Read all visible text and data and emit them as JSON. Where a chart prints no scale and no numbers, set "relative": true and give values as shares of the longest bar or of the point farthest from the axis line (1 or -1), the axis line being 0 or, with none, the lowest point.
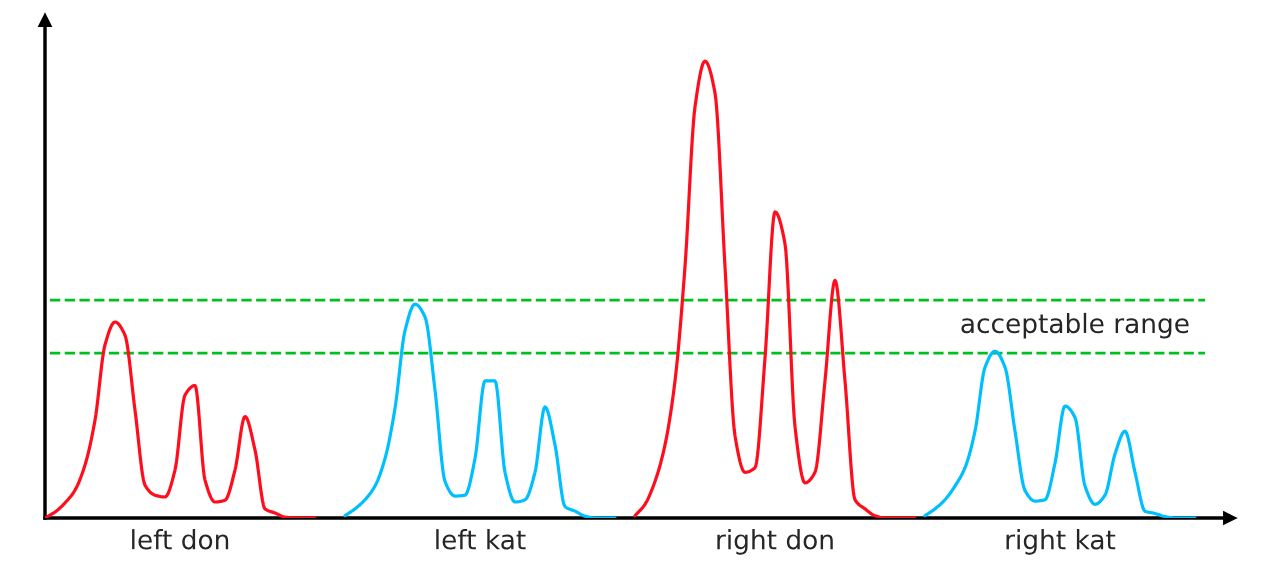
{
  "chart_data": {
    "type": "line",
    "relative": true,
    "legend": false,
    "line_style": "solid",
    "categories": [
      null,
      null,
      null,
      null,
      null,
      null,
      null,
      null,
      null,
      null,
      null,
      null,
      null,
      null,
      null,
      null,
      null,
      null,
      null,
      null,
      null,
      null,
      null,
      null,
      null,
      null,
      null,
      null,
      null,
      null,
      null,
      null,
      null,
      null,
      null,
      null,
      null,
      null,
      null,
      null,
      null,
      null,
      null,
      null,
      null,
      null,
      null,
      null,
      null,
      null,
      null,
      null,
      null,
      null,
      null,
      null,
      null,
      null,
      null,
      null,
      null,
      null,
      null,
      null,
      null,
      null,
      null,
      null,
      null,
      null,
      null,
      null,
      null,
      null,
      null,
      null,
      null,
      null,
      null,
      null,
      null,
      null,
      null,
      null,
      null,
      null,
      null,
      null,
      null,
      null,
      null,
      null,
      null,
      null,
      null,
      null,
      null,
      null,
      null,
      null,
      null,
      null,
      null,
      null,
      null,
      null,
      null,
      null,
      null,
      null,
      null,
      null,
      null,
      null,
      null,
      null
    ],
    "series": [
      {
        "color": "#ff0d1c",
        "values": [
          0,
          0.013,
          0.033,
          0.061,
          0.116,
          0.214,
          0.379,
          0.429,
          0.4,
          0.236,
          0.072,
          0.05,
          0.046,
          0.105,
          0.269,
          0.29,
          0.083,
          0.035,
          0.039,
          0.105,
          0.222,
          0.149,
          0.02,
          0.011,
          0.002,
          0,
          0,
          0,
          null,
          null,
          null,
          null,
          null,
          null,
          null,
          null,
          null,
          null,
          null,
          null,
          null,
          null,
          null,
          null,
          null,
          null,
          null,
          null,
          null,
          null,
          null,
          null,
          null,
          null,
          null,
          null,
          null,
          null,
          null,
          null,
          null,
          null,
          null,
          null,
          null,
          null,
          null,
          null,
          null,
          null,
          null,
          null,
          null,
          null,
          null,
          null,
          null,
          null,
          null,
          null,
          null,
          null,
          null,
          null,
          null,
          null,
          null,
          null,
          null,
          null,
          null,
          null,
          null,
          null,
          null,
          null,
          null,
          null,
          null,
          null,
          null,
          null,
          null,
          null,
          null,
          null,
          null,
          null,
          null,
          null,
          null,
          null,
          null,
          null,
          null,
          null
        ]
      },
      {
        "color": "#00bfff",
        "values": [
          null,
          null,
          null,
          null,
          null,
          null,
          null,
          null,
          null,
          null,
          null,
          null,
          null,
          null,
          null,
          null,
          null,
          null,
          null,
          null,
          null,
          null,
          null,
          null,
          null,
          null,
          null,
          null,
          null,
          null,
          0.005,
          0.02,
          0.04,
          0.07,
          0.13,
          0.24,
          0.41,
          0.468,
          0.44,
          0.28,
          0.08,
          0.048,
          0.05,
          0.13,
          0.3,
          0.3,
          0.1,
          0.035,
          0.04,
          0.1,
          0.243,
          0.16,
          0.025,
          0.015,
          0.004,
          0,
          0,
          0,
          null,
          null,
          null,
          null,
          null,
          null,
          null,
          null,
          null,
          null,
          null,
          null,
          null,
          null,
          null,
          null,
          null,
          null,
          null,
          null,
          null,
          null,
          null,
          null,
          null,
          null,
          null,
          null,
          null,
          null,
          null,
          null,
          null,
          null,
          null,
          null,
          null,
          null,
          null,
          null,
          null,
          null,
          null,
          null,
          null,
          null,
          null,
          null,
          null,
          null,
          null,
          null,
          null,
          null,
          null,
          null,
          null,
          null
        ]
      },
      {
        "color": "#ff0d1c",
        "values": [
          null,
          null,
          null,
          null,
          null,
          null,
          null,
          null,
          null,
          null,
          null,
          null,
          null,
          null,
          null,
          null,
          null,
          null,
          null,
          null,
          null,
          null,
          null,
          null,
          null,
          null,
          null,
          null,
          null,
          null,
          null,
          null,
          null,
          null,
          null,
          null,
          null,
          null,
          null,
          null,
          null,
          null,
          null,
          null,
          null,
          null,
          null,
          null,
          null,
          null,
          null,
          null,
          null,
          null,
          null,
          null,
          null,
          null,
          null,
          0.005,
          0.03,
          0.08,
          0.16,
          0.3,
          0.55,
          0.9,
          1.0,
          0.93,
          0.55,
          0.18,
          0.1,
          0.11,
          0.35,
          0.67,
          0.6,
          0.2,
          0.077,
          0.1,
          0.3,
          0.52,
          0.3,
          0.04,
          0.02,
          0.005,
          0,
          0,
          0,
          0,
          null,
          null,
          null,
          null,
          null,
          null,
          null,
          null,
          null,
          null,
          null,
          null,
          null,
          null,
          null,
          null,
          null,
          null,
          null,
          null,
          null,
          null,
          null,
          null,
          null,
          null,
          null,
          null
        ]
      },
      {
        "color": "#00bfff",
        "values": [
          null,
          null,
          null,
          null,
          null,
          null,
          null,
          null,
          null,
          null,
          null,
          null,
          null,
          null,
          null,
          null,
          null,
          null,
          null,
          null,
          null,
          null,
          null,
          null,
          null,
          null,
          null,
          null,
          null,
          null,
          null,
          null,
          null,
          null,
          null,
          null,
          null,
          null,
          null,
          null,
          null,
          null,
          null,
          null,
          null,
          null,
          null,
          null,
          null,
          null,
          null,
          null,
          null,
          null,
          null,
          null,
          null,
          null,
          null,
          null,
          null,
          null,
          null,
          null,
          null,
          null,
          null,
          null,
          null,
          null,
          null,
          null,
          null,
          null,
          null,
          null,
          null,
          null,
          null,
          null,
          null,
          null,
          null,
          null,
          null,
          null,
          null,
          null,
          0.005,
          0.02,
          0.04,
          0.07,
          0.11,
          0.19,
          0.33,
          0.365,
          0.33,
          0.19,
          0.06,
          0.037,
          0.04,
          0.12,
          0.245,
          0.22,
          0.07,
          0.03,
          0.05,
          0.14,
          0.19,
          0.1,
          0.015,
          0.01,
          0.003,
          0,
          0,
          0
        ]
      }
    ],
    "ref_lines": [
      {
        "axis": "y",
        "value": 0.477,
        "color": "#00c020",
        "line_style": "dashed"
      },
      {
        "axis": "y",
        "value": 0.361,
        "color": "#00c020",
        "line_style": "dashed",
        "label": "acceptable range"
      }
    ],
    "annotations": [
      "left don",
      "left kat",
      "right don",
      "right kat"
    ]
  }
}
